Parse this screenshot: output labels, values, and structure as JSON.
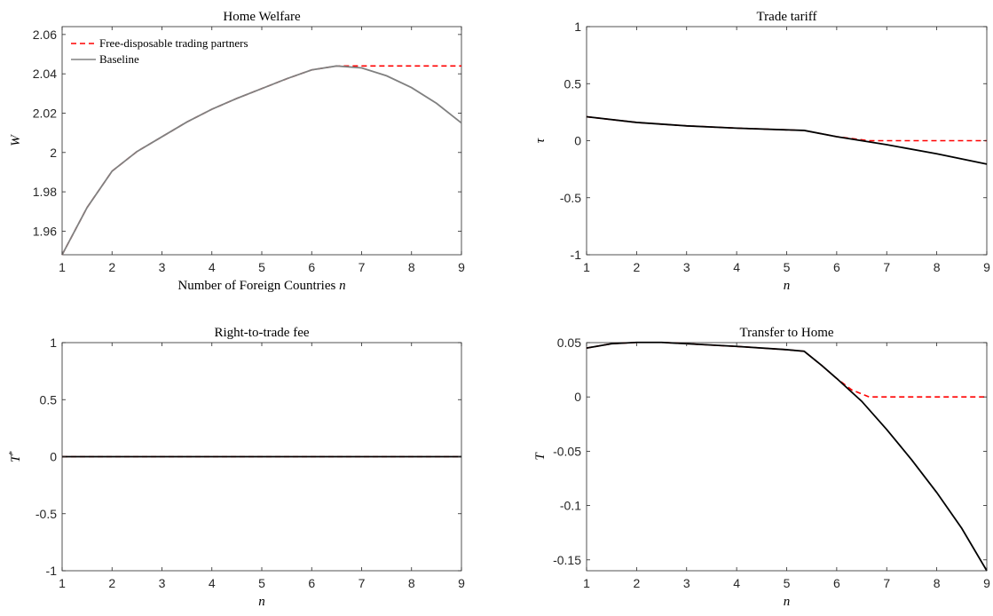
{
  "chart_data": [
    {
      "type": "line",
      "title": "Home Welfare",
      "xlabel": "Number of Foreign Countries n",
      "ylabel": "W",
      "xlim": [
        1,
        9
      ],
      "ylim": [
        1.948,
        2.064
      ],
      "xticks": [
        "1",
        "2",
        "3",
        "4",
        "5",
        "6",
        "7",
        "8",
        "9"
      ],
      "yticks": [
        "1.96",
        "1.98",
        "2",
        "2.02",
        "2.04",
        "2.06"
      ],
      "ytick_values": [
        1.96,
        1.98,
        2.0,
        2.02,
        2.04,
        2.06
      ],
      "grid": false,
      "legend": "top-left",
      "series": [
        {
          "name": "Free-disposable trading partners",
          "color": "#ff0000",
          "style": "dashed",
          "x": [
            1,
            1.5,
            2,
            2.5,
            3,
            3.5,
            4,
            4.5,
            5,
            5.5,
            6,
            6.5,
            6.7,
            7,
            8,
            9
          ],
          "y": [
            1.948,
            1.972,
            1.9905,
            2.0005,
            2.008,
            2.0155,
            2.022,
            2.0275,
            2.0325,
            2.0375,
            2.042,
            2.044,
            2.044,
            2.044,
            2.044,
            2.044
          ]
        },
        {
          "name": "Baseline",
          "color": "#808080",
          "style": "solid",
          "x": [
            1,
            1.5,
            2,
            2.5,
            3,
            3.5,
            4,
            4.5,
            5,
            5.5,
            6,
            6.5,
            7,
            7.5,
            8,
            8.5,
            9
          ],
          "y": [
            1.948,
            1.972,
            1.9905,
            2.0005,
            2.008,
            2.0155,
            2.022,
            2.0275,
            2.0325,
            2.0375,
            2.042,
            2.044,
            2.043,
            2.039,
            2.033,
            2.025,
            2.015
          ]
        }
      ]
    },
    {
      "type": "line",
      "title": "Trade tariff",
      "xlabel": "n",
      "ylabel": "τ",
      "xlim": [
        1,
        9
      ],
      "ylim": [
        -1,
        1
      ],
      "xticks": [
        "1",
        "2",
        "3",
        "4",
        "5",
        "6",
        "7",
        "8",
        "9"
      ],
      "yticks": [
        "-1",
        "-0.5",
        "0",
        "0.5",
        "1"
      ],
      "ytick_values": [
        -1,
        -0.5,
        0,
        0.5,
        1
      ],
      "grid": false,
      "series": [
        {
          "color": "#ff0000",
          "style": "dashed",
          "x": [
            1,
            2,
            3,
            4,
            5,
            5.35,
            6,
            6.65,
            7,
            8,
            9
          ],
          "y": [
            0.21,
            0.16,
            0.13,
            0.11,
            0.095,
            0.09,
            0.035,
            0.0,
            0.0,
            0.0,
            0.0
          ]
        },
        {
          "color": "#000000",
          "style": "solid",
          "x": [
            1,
            2,
            3,
            4,
            5,
            5.35,
            6,
            7,
            8,
            9
          ],
          "y": [
            0.21,
            0.16,
            0.13,
            0.11,
            0.095,
            0.09,
            0.035,
            -0.035,
            -0.115,
            -0.205
          ]
        }
      ]
    },
    {
      "type": "line",
      "title": "Right-to-trade fee",
      "xlabel": "n",
      "ylabel": "T*",
      "xlim": [
        1,
        9
      ],
      "ylim": [
        -1,
        1
      ],
      "xticks": [
        "1",
        "2",
        "3",
        "4",
        "5",
        "6",
        "7",
        "8",
        "9"
      ],
      "yticks": [
        "-1",
        "-0.5",
        "0",
        "0.5",
        "1"
      ],
      "ytick_values": [
        -1,
        -0.5,
        0,
        0.5,
        1
      ],
      "grid": false,
      "series": [
        {
          "color": "#ff0000",
          "style": "dashed",
          "x": [
            1,
            9
          ],
          "y": [
            0,
            0
          ]
        },
        {
          "color": "#000000",
          "style": "solid",
          "x": [
            1,
            9
          ],
          "y": [
            0,
            0
          ]
        }
      ]
    },
    {
      "type": "line",
      "title": "Transfer to Home",
      "xlabel": "n",
      "ylabel": "T",
      "xlim": [
        1,
        9
      ],
      "ylim": [
        -0.16,
        0.05
      ],
      "xticks": [
        "1",
        "2",
        "3",
        "4",
        "5",
        "6",
        "7",
        "8",
        "9"
      ],
      "yticks": [
        "-0.15",
        "-0.1",
        "-0.05",
        "0",
        "0.05"
      ],
      "ytick_values": [
        -0.15,
        -0.1,
        -0.05,
        0,
        0.05
      ],
      "grid": false,
      "series": [
        {
          "color": "#ff0000",
          "style": "dashed",
          "x": [
            1,
            1.5,
            2,
            2.5,
            3,
            4,
            5,
            5.35,
            5.7,
            6,
            6.3,
            6.65,
            7,
            8,
            9
          ],
          "y": [
            0.045,
            0.049,
            0.0502,
            0.0502,
            0.049,
            0.0465,
            0.0435,
            0.042,
            0.029,
            0.017,
            0.0065,
            0.0,
            0.0,
            0.0,
            0.0
          ]
        },
        {
          "color": "#000000",
          "style": "solid",
          "x": [
            1,
            1.5,
            2,
            2.5,
            3,
            4,
            5,
            5.35,
            5.7,
            6,
            6.5,
            7,
            7.5,
            8,
            8.5,
            9
          ],
          "y": [
            0.045,
            0.049,
            0.0502,
            0.0502,
            0.049,
            0.0465,
            0.0435,
            0.042,
            0.029,
            0.017,
            -0.004,
            -0.03,
            -0.058,
            -0.088,
            -0.121,
            -0.16
          ]
        }
      ]
    }
  ]
}
